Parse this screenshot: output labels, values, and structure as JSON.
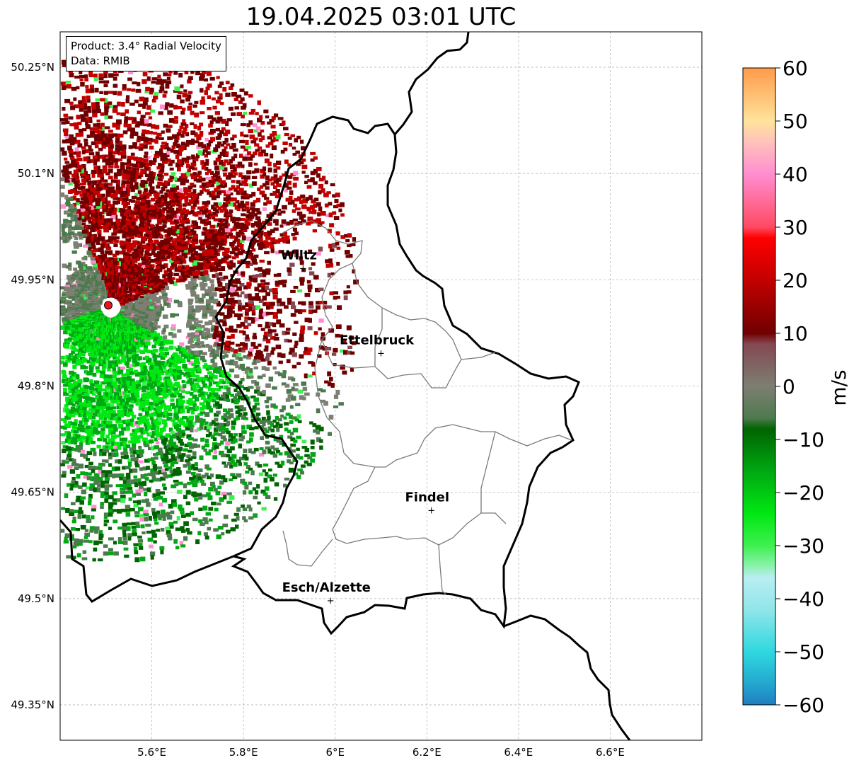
{
  "title": "19.04.2025 03:01 UTC",
  "info": {
    "product": "Product: 3.4° Radial Velocity",
    "source": "Data: RMIB"
  },
  "lat_ticks": [
    "50.25°N",
    "50.1°N",
    "49.95°N",
    "49.8°N",
    "49.65°N",
    "49.5°N",
    "49.35°N"
  ],
  "lat_values": [
    50.25,
    50.1,
    49.95,
    49.8,
    49.65,
    49.5,
    49.35
  ],
  "lon_ticks": [
    "5.6°E",
    "5.8°E",
    "6°E",
    "6.2°E",
    "6.4°E",
    "6.6°E"
  ],
  "lon_values": [
    5.6,
    5.8,
    6.0,
    6.2,
    6.4,
    6.6
  ],
  "map_extent": {
    "lon_min": 5.4,
    "lon_max": 6.8,
    "lat_min": 49.3,
    "lat_max": 50.3
  },
  "cities": [
    {
      "name": "Wiltz",
      "lon": 5.93,
      "lat": 49.967
    },
    {
      "name": "Ettelbruck",
      "lon": 6.1,
      "lat": 49.847
    },
    {
      "name": "Findel",
      "lon": 6.21,
      "lat": 49.625
    },
    {
      "name": "Esch/Alzette",
      "lon": 5.99,
      "lat": 49.498
    }
  ],
  "radar_site": {
    "lon": 5.505,
    "lat": 49.914,
    "color": "#e8141e"
  },
  "colorbar": {
    "label": "m/s",
    "ticks": [
      "60",
      "50",
      "40",
      "30",
      "20",
      "10",
      "0",
      "−10",
      "−20",
      "−30",
      "−40",
      "−50",
      "−60"
    ],
    "tick_values": [
      60,
      50,
      40,
      30,
      20,
      10,
      0,
      -10,
      -20,
      -30,
      -40,
      -50,
      -60
    ],
    "min": -60,
    "max": 60,
    "stops": [
      {
        "v": -60,
        "c": "#1f7fc0"
      },
      {
        "v": -56,
        "c": "#23a7cf"
      },
      {
        "v": -50,
        "c": "#2fd8df"
      },
      {
        "v": -42,
        "c": "#90e6ea"
      },
      {
        "v": -36,
        "c": "#b9eef2"
      },
      {
        "v": -34,
        "c": "#8ef2b0"
      },
      {
        "v": -30,
        "c": "#3ef04f"
      },
      {
        "v": -24,
        "c": "#00e812"
      },
      {
        "v": -16,
        "c": "#00a812"
      },
      {
        "v": -8,
        "c": "#006400"
      },
      {
        "v": -6,
        "c": "#4d7a4d"
      },
      {
        "v": 0,
        "c": "#7d7f72"
      },
      {
        "v": 8,
        "c": "#844852"
      },
      {
        "v": 10,
        "c": "#700000"
      },
      {
        "v": 20,
        "c": "#c20000"
      },
      {
        "v": 28,
        "c": "#ff0000"
      },
      {
        "v": 30,
        "c": "#ff4a62"
      },
      {
        "v": 40,
        "c": "#ff8dd0"
      },
      {
        "v": 46,
        "c": "#ffc2bb"
      },
      {
        "v": 50,
        "c": "#ffe39b"
      },
      {
        "v": 60,
        "c": "#ff9a4a"
      }
    ]
  },
  "colors": {
    "border": "#000000",
    "canton": "#7a7a7a",
    "grid": "#b8b8b8",
    "approaching": "#0a8a0a",
    "receding": "#9a0000",
    "near_zero_pos": "#856068",
    "near_zero_neg": "#5f7e5c"
  }
}
